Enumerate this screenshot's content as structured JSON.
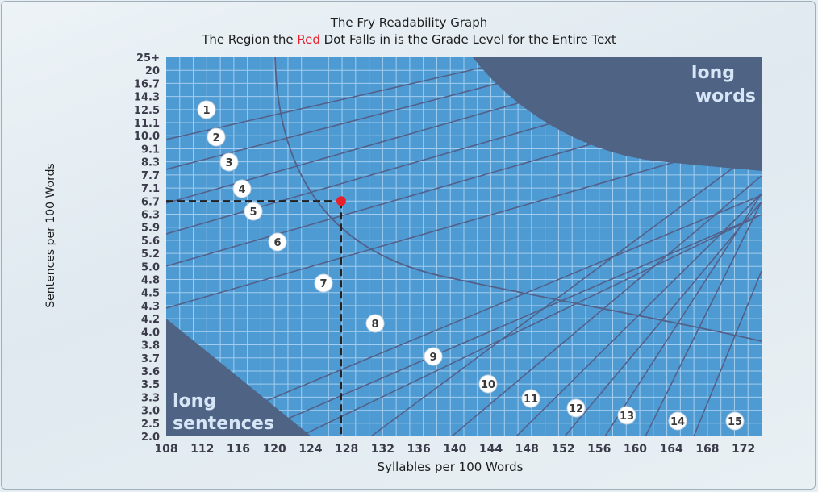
{
  "header": {
    "title": "The Fry Readability Graph",
    "subtitle_before": "The Region the ",
    "subtitle_red": "Red",
    "subtitle_after": " Dot Falls in is the Grade Level for the Entire Text"
  },
  "chart_data": {
    "type": "scatter",
    "title": "The Fry Readability Graph",
    "subtitle": "The Region the Red Dot Falls in is the Grade Level for the Entire Text",
    "xlabel": "Syllables per 100 Words",
    "ylabel": "Sentences per 100 Words",
    "x_ticks": [
      "108",
      "112",
      "116",
      "120",
      "124",
      "128",
      "132",
      "136",
      "140",
      "144",
      "148",
      "152",
      "156",
      "160",
      "164",
      "168",
      "172"
    ],
    "y_ticks": [
      "25+",
      "20",
      "16.7",
      "14.3",
      "12.5",
      "11.1",
      "10.0",
      "9.1",
      "8.3",
      "7.7",
      "7.1",
      "6.7",
      "6.3",
      "5.9",
      "5.6",
      "5.2",
      "5.0",
      "4.8",
      "4.5",
      "4.3",
      "4.2",
      "4.0",
      "3.8",
      "3.7",
      "3.6",
      "3.5",
      "3.3",
      "3.0",
      "2.5",
      "2.0"
    ],
    "xlim": [
      108,
      174
    ],
    "grade_labels": [
      "1",
      "2",
      "3",
      "4",
      "5",
      "6",
      "7",
      "8",
      "9",
      "10",
      "11",
      "12",
      "13",
      "14",
      "15"
    ],
    "region_labels": {
      "long_words_1": "long",
      "long_words_2": "words",
      "long_sentences_1": "long",
      "long_sentences_2": "sentences"
    },
    "point": {
      "x": 127.4,
      "y": 6.7,
      "color": "#e8202a"
    },
    "grid": true,
    "colors": {
      "plot_bg": "#4e9bd3",
      "grid": "#a3cdee",
      "region": "#4f6385",
      "curve": "#53608a"
    }
  }
}
